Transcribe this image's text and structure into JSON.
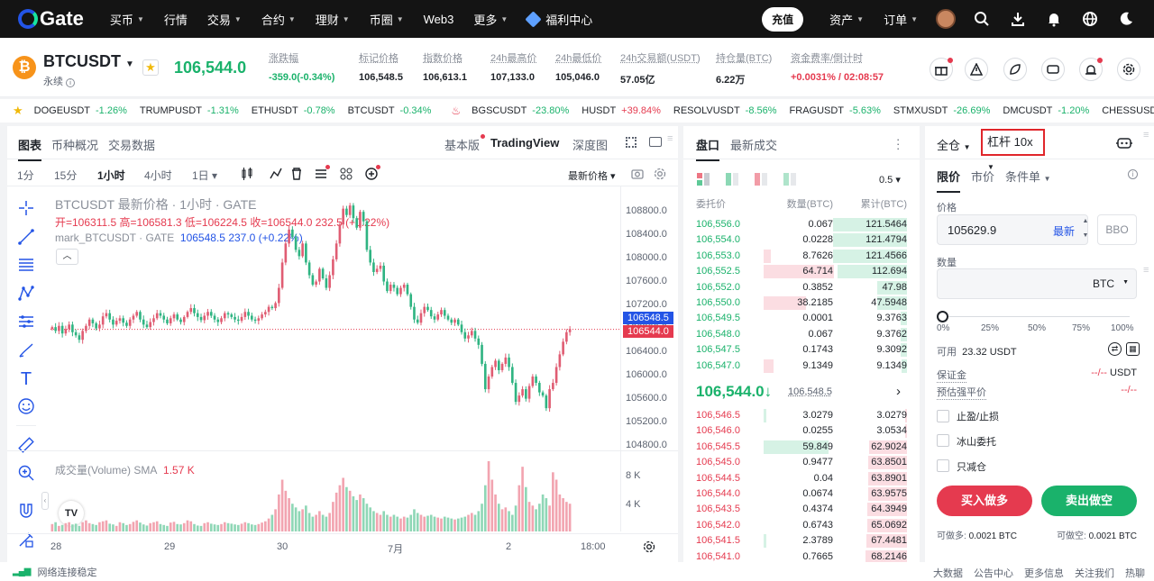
{
  "nav": {
    "brand": "Gate",
    "items": [
      "买币",
      "行情",
      "交易",
      "合约",
      "理财",
      "币圈",
      "Web3",
      "更多"
    ],
    "promo": "福利中心",
    "deposit": "充值",
    "assets": "资产",
    "orders": "订单"
  },
  "ticker": {
    "coin_symbol": "₿",
    "pair": "BTCUSDT",
    "type": "永续",
    "last_price": "106,544.0",
    "stats": [
      {
        "label": "涨跌幅",
        "value": "-359.0(-0.34%)",
        "color": "#1ab26b"
      },
      {
        "label": "标记价格",
        "value": "106,548.5",
        "color": "#1f2329"
      },
      {
        "label": "指数价格",
        "value": "106,613.1",
        "color": "#1f2329"
      },
      {
        "label": "24h最高价",
        "value": "107,133.0",
        "color": "#1f2329"
      },
      {
        "label": "24h最低价",
        "value": "105,046.0",
        "color": "#1f2329"
      },
      {
        "label": "24h交易额(USDT)",
        "value": "57.05亿",
        "color": "#1f2329"
      },
      {
        "label": "持仓量(BTC)",
        "value": "6.22万",
        "color": "#1f2329"
      },
      {
        "label": "资金费率/倒计时",
        "value": "+0.0031% / 02:08:57",
        "color": "#e53a4f"
      }
    ]
  },
  "marquee": [
    {
      "name": "DOGEUSDT",
      "change": "-1.26%",
      "color": "#1ab26b"
    },
    {
      "name": "TRUMPUSDT",
      "change": "-1.31%",
      "color": "#1ab26b"
    },
    {
      "name": "ETHUSDT",
      "change": "-0.78%",
      "color": "#1ab26b"
    },
    {
      "name": "BTCUSDT",
      "change": "-0.34%",
      "color": "#1ab26b"
    },
    {
      "name": "BGSCUSDT",
      "change": "-23.80%",
      "color": "#1ab26b"
    },
    {
      "name": "HUSDT",
      "change": "+39.84%",
      "color": "#e53a4f"
    },
    {
      "name": "RESOLVUSDT",
      "change": "-8.56%",
      "color": "#1ab26b"
    },
    {
      "name": "FRAGUSDT",
      "change": "-5.63%",
      "color": "#1ab26b"
    },
    {
      "name": "STMXUSDT",
      "change": "-26.69%",
      "color": "#1ab26b"
    },
    {
      "name": "DMCUSDT",
      "change": "-1.20%",
      "color": "#1ab26b"
    },
    {
      "name": "CHESSUSDT",
      "change": "+7",
      "color": "#e53a4f"
    }
  ],
  "chart": {
    "tabs": [
      "图表",
      "币种概况",
      "交易数据"
    ],
    "views": [
      "基本版",
      "TradingView",
      "深度图"
    ],
    "intervals": [
      "1分",
      "15分",
      "1小时",
      "4小时",
      "1日 ▾"
    ],
    "price_mode": "最新价格 ▾",
    "legend_title": "BTCUSDT 最新价格 · 1小时 · GATE",
    "ohlc_open": "开=106311.5",
    "ohlc_high": "高=106581.3",
    "ohlc_low": "低=106224.5",
    "ohlc_close": "收=106544.0",
    "ohlc_change": "232.5 (+0.22%)",
    "mark_label": "mark_BTCUSDT · GATE",
    "mark_value": "106548.5",
    "mark_change": "237.0 (+0.22%)",
    "volume_label": "成交量(Volume) SMA",
    "volume_value": "1.57 K",
    "mark_tag": "106548.5",
    "last_tag": "106544.0",
    "vol_ticks": [
      "8 K",
      "4 K"
    ],
    "tv_logo": "TV"
  },
  "chart_data": {
    "type": "candlestick",
    "y_ticks": [
      "108800.0",
      "108400.0",
      "108000.0",
      "107600.0",
      "107200.0",
      "106800.0",
      "106400.0",
      "106000.0",
      "105600.0",
      "105200.0",
      "104800.0"
    ],
    "x_ticks": [
      "28",
      "29",
      "30",
      "7月",
      "2",
      "18:00"
    ],
    "ylim": [
      104600,
      108900
    ],
    "close_series": [
      106580,
      106520,
      106600,
      106480,
      106550,
      106620,
      106500,
      106450,
      106380,
      106520,
      106600,
      106700,
      106640,
      106560,
      106620,
      106750,
      106800,
      106700,
      106620,
      106680,
      106720,
      106650,
      106600,
      106700,
      106760,
      106820,
      106700,
      106620,
      106580,
      106660,
      106720,
      106800,
      106760,
      106700,
      106640,
      106720,
      106780,
      106700,
      106660,
      106740,
      106820,
      106880,
      106800,
      106740,
      106690,
      106760,
      106820,
      106760,
      106700,
      106660,
      106720,
      106800,
      106780,
      106740,
      106700,
      106680,
      106740,
      106820,
      106760,
      106700,
      106680,
      106720,
      106780,
      106820,
      106900,
      106880,
      106960,
      107200,
      107600,
      107900,
      108120,
      108000,
      107800,
      107700,
      107900,
      107600,
      107400,
      107250,
      107300,
      107500,
      107350,
      107200,
      107400,
      107650,
      107900,
      108200,
      108450,
      108350,
      108500,
      108300,
      108150,
      108400,
      108250,
      107800,
      107600,
      107450,
      107500,
      107550,
      107300,
      107150,
      107250,
      107200,
      107100,
      107200,
      107250,
      107100,
      106900,
      106700,
      106650,
      106800,
      106900,
      106850,
      106750,
      106700,
      106780,
      106850,
      106760,
      106700,
      106650,
      106700,
      106620,
      106500,
      106400,
      106450,
      106520,
      106400,
      106300,
      106000,
      105600,
      105800,
      105950,
      106050,
      105900,
      106000,
      106100,
      105950,
      105700,
      105400,
      105500,
      105600,
      105450,
      105650,
      105800,
      105700,
      105550,
      105500,
      105300,
      105600,
      105700,
      105950,
      106150,
      106350,
      106500,
      106550
    ],
    "volume_series": [
      400,
      500,
      300,
      350,
      450,
      500,
      380,
      420,
      300,
      500,
      600,
      450,
      400,
      350,
      500,
      550,
      600,
      420,
      380,
      300,
      500,
      450,
      350,
      400,
      520,
      600,
      480,
      380,
      320,
      450,
      500,
      550,
      400,
      350,
      300,
      480,
      520,
      400,
      380,
      450,
      600,
      550,
      400,
      320,
      300,
      450,
      500,
      420,
      380,
      350,
      400,
      500,
      450,
      420,
      380,
      350,
      420,
      500,
      450,
      380,
      350,
      400,
      480,
      550,
      700,
      900,
      1200,
      2000,
      2800,
      2200,
      1800,
      1500,
      1300,
      1100,
      1200,
      1400,
      1000,
      800,
      900,
      1100,
      900,
      800,
      1000,
      1600,
      2100,
      2500,
      2900,
      2400,
      2200,
      1900,
      1700,
      2000,
      1800,
      1500,
      1300,
      1100,
      1000,
      900,
      1100,
      900,
      800,
      900,
      800,
      700,
      800,
      750,
      900,
      1200,
      1000,
      900,
      800,
      850,
      900,
      800,
      750,
      700,
      800,
      750,
      700,
      650,
      700,
      750,
      800,
      900,
      1000,
      900,
      1100,
      1500,
      2500,
      3800,
      2800,
      2000,
      1500,
      1200,
      1300,
      1100,
      900,
      1400,
      2500,
      3500,
      2400,
      1600,
      1400,
      1200,
      1500,
      2000,
      1800,
      1400,
      3200,
      2800,
      2000,
      1800,
      1600,
      1500,
      1700,
      1600
    ]
  },
  "orderbook": {
    "tabs": [
      "盘口",
      "最新成交"
    ],
    "tick": "0.5 ▾",
    "headers": [
      "委托价",
      "数量(BTC)",
      "累计(BTC)"
    ],
    "asks": [
      {
        "price": "106,556.0",
        "qty": "0.067",
        "total": "121.5464",
        "depth": 0.98,
        "own": 0.0
      },
      {
        "price": "106,554.0",
        "qty": "0.0228",
        "total": "121.4794",
        "depth": 0.98,
        "own": 0.0
      },
      {
        "price": "106,553.0",
        "qty": "8.7626",
        "total": "121.4566",
        "depth": 0.98,
        "own": 0.05
      },
      {
        "price": "106,552.5",
        "qty": "64.714",
        "total": "112.694",
        "depth": 0.92,
        "own": 0.52
      },
      {
        "price": "106,552.0",
        "qty": "0.3852",
        "total": "47.98",
        "depth": 0.39,
        "own": 0.0
      },
      {
        "price": "106,550.0",
        "qty": "38.2185",
        "total": "47.5948",
        "depth": 0.39,
        "own": 0.31
      },
      {
        "price": "106,549.5",
        "qty": "0.0001",
        "total": "9.3763",
        "depth": 0.08,
        "own": 0.0
      },
      {
        "price": "106,548.0",
        "qty": "0.067",
        "total": "9.3762",
        "depth": 0.08,
        "own": 0.0
      },
      {
        "price": "106,547.5",
        "qty": "0.1743",
        "total": "9.3092",
        "depth": 0.08,
        "own": 0.0
      },
      {
        "price": "106,547.0",
        "qty": "9.1349",
        "total": "9.1349",
        "depth": 0.07,
        "own": 0.07
      }
    ],
    "mid_price": "106,544.0",
    "mid_arrow": "↓",
    "mid_mark": "106,548.5",
    "bids": [
      {
        "price": "106,546.5",
        "qty": "3.0279",
        "total": "3.0279",
        "depth": 0.02,
        "own": 0.02
      },
      {
        "price": "106,546.0",
        "qty": "0.0255",
        "total": "3.0534",
        "depth": 0.02,
        "own": 0.0
      },
      {
        "price": "106,545.5",
        "qty": "59.849",
        "total": "62.9024",
        "depth": 0.5,
        "own": 0.48
      },
      {
        "price": "106,545.0",
        "qty": "0.9477",
        "total": "63.8501",
        "depth": 0.51,
        "own": 0.0
      },
      {
        "price": "106,544.5",
        "qty": "0.04",
        "total": "63.8901",
        "depth": 0.51,
        "own": 0.0
      },
      {
        "price": "106,544.0",
        "qty": "0.0674",
        "total": "63.9575",
        "depth": 0.51,
        "own": 0.0
      },
      {
        "price": "106,543.5",
        "qty": "0.4374",
        "total": "64.3949",
        "depth": 0.52,
        "own": 0.0
      },
      {
        "price": "106,542.0",
        "qty": "0.6743",
        "total": "65.0692",
        "depth": 0.52,
        "own": 0.0
      },
      {
        "price": "106,541.5",
        "qty": "2.3789",
        "total": "67.4481",
        "depth": 0.54,
        "own": 0.02
      },
      {
        "price": "106,541.0",
        "qty": "0.7665",
        "total": "68.2146",
        "depth": 0.55,
        "own": 0.0
      }
    ]
  },
  "trade": {
    "margin_mode": "全仓",
    "leverage": "杠杆 10x",
    "order_tabs": [
      "限价",
      "市价",
      "条件单"
    ],
    "price_label": "价格",
    "price_value": "105629.9",
    "price_latest": "最新",
    "bbo": "BBO",
    "qty_label": "数量",
    "qty_unit": "BTC",
    "slider_marks": [
      "0%",
      "25%",
      "50%",
      "75%",
      "100%"
    ],
    "available_label": "可用",
    "available_value": "23.32 USDT",
    "margin_label": "保证金",
    "margin_value": "--/--",
    "margin_unit": "USDT",
    "liq_label": "预估强平价",
    "liq_value": "--/--",
    "options": [
      "止盈/止损",
      "冰山委托",
      "只减仓"
    ],
    "buy_label": "买入做多",
    "sell_label": "卖出做空",
    "can_buy_label": "可做多:",
    "can_buy_value": "0.0021 BTC",
    "can_sell_label": "可做空:",
    "can_sell_value": "0.0021 BTC"
  },
  "footer": {
    "status": "网络连接稳定",
    "links": [
      "大数据",
      "公告中心",
      "更多信息",
      "关注我们",
      "热聊"
    ]
  },
  "colors": {
    "up": "#1ab26b",
    "down": "#e53a4f",
    "brand": "#2354e6"
  }
}
